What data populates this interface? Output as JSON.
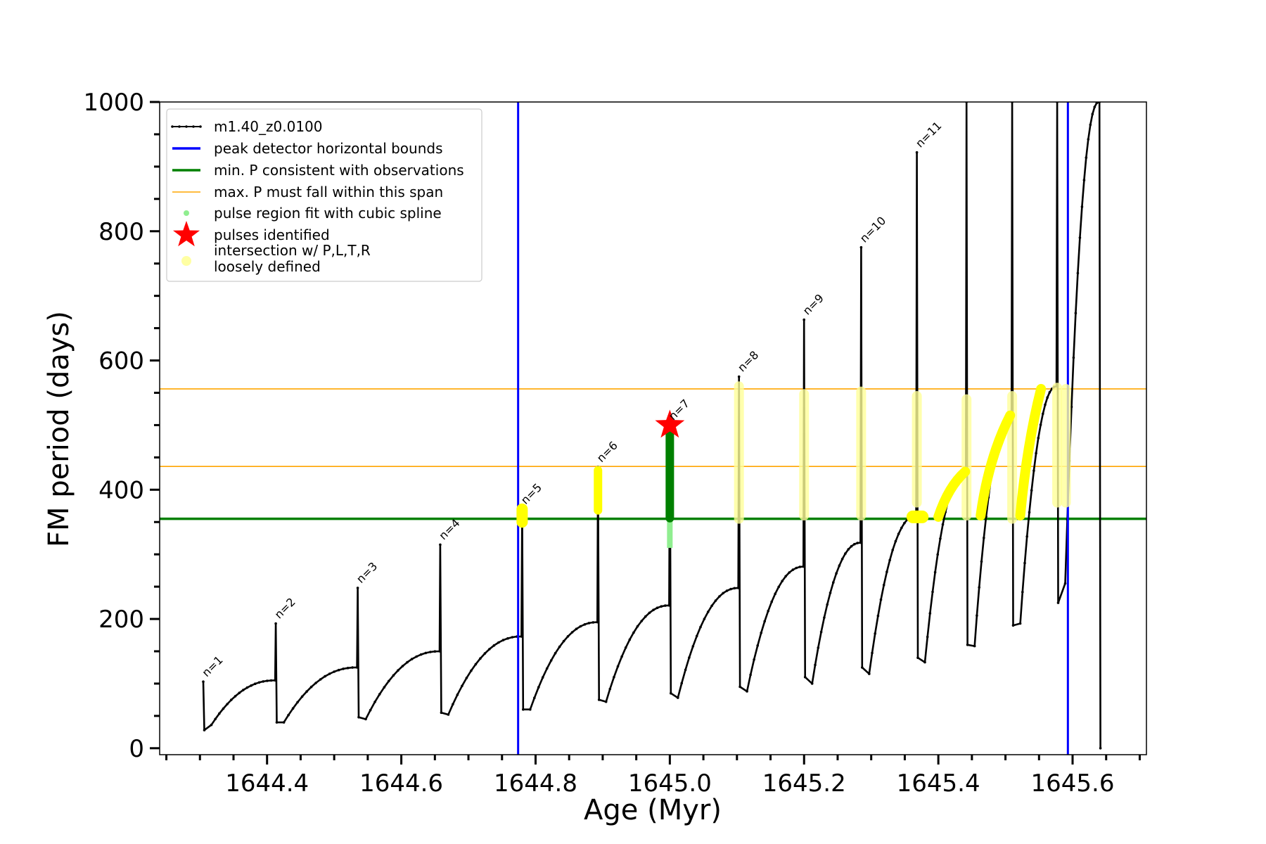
{
  "chart_data": {
    "type": "line",
    "title": "",
    "xlabel": "Age (Myr)",
    "ylabel": "FM period (days)",
    "xlim": [
      1644.24,
      1645.71
    ],
    "ylim": [
      -10,
      1000
    ],
    "xticks": [
      {
        "value": 1644.4,
        "label": "1644.4"
      },
      {
        "value": 1644.6,
        "label": "1644.6"
      },
      {
        "value": 1644.8,
        "label": "1644.8"
      },
      {
        "value": 1645.0,
        "label": "1645.0"
      },
      {
        "value": 1645.2,
        "label": "1645.2"
      },
      {
        "value": 1645.4,
        "label": "1645.4"
      },
      {
        "value": 1645.6,
        "label": "1645.6"
      }
    ],
    "yticks": [
      {
        "value": 0,
        "label": "0"
      },
      {
        "value": 200,
        "label": "200"
      },
      {
        "value": 400,
        "label": "400"
      },
      {
        "value": 600,
        "label": "600"
      },
      {
        "value": 800,
        "label": "800"
      },
      {
        "value": 1000,
        "label": "1000"
      }
    ],
    "legend": {
      "position": "top-left",
      "entries": [
        {
          "label": "m1.40_z0.0100",
          "style": "line-marker",
          "color": "#000000"
        },
        {
          "label": "peak detector horizontal bounds",
          "style": "line",
          "color": "#0000ff"
        },
        {
          "label": "min. P consistent with observations",
          "style": "line",
          "color": "#008000"
        },
        {
          "label": "max. P must fall within this span",
          "style": "thin-line",
          "color": "#ffa500"
        },
        {
          "label": "pulse region fit with cubic spline",
          "style": "dot",
          "color": "#90ee90"
        },
        {
          "label": "pulses identified",
          "style": "star",
          "color": "#ff0000"
        },
        {
          "label": [
            "intersection w/ P,L,T,R",
            "loosely defined"
          ],
          "style": "soft-dot",
          "color": "#ffff99"
        }
      ]
    },
    "vertical_bounds": [
      1644.774,
      1645.593
    ],
    "min_period_line": 355,
    "max_period_span": [
      436,
      556
    ],
    "pulses": [
      {
        "label": "n=1",
        "age": 1644.305,
        "peak": 103,
        "dip": 28,
        "trough": 36,
        "end": 105
      },
      {
        "label": "n=2",
        "age": 1644.413,
        "peak": 193,
        "dip": 40,
        "trough": 40,
        "end": 125
      },
      {
        "label": "n=3",
        "age": 1644.535,
        "peak": 248,
        "dip": 48,
        "trough": 45,
        "end": 150
      },
      {
        "label": "n=4",
        "age": 1644.658,
        "peak": 315,
        "dip": 55,
        "trough": 52,
        "end": 173
      },
      {
        "label": "n=5",
        "age": 1644.78,
        "peak": 370,
        "dip": 60,
        "trough": 60,
        "end": 195
      },
      {
        "label": "n=6",
        "age": 1644.893,
        "peak": 435,
        "dip": 75,
        "trough": 72,
        "end": 221
      },
      {
        "label": "n=7",
        "age": 1645.0,
        "peak": 500,
        "dip": 85,
        "trough": 78,
        "end": 248
      },
      {
        "label": "n=8",
        "age": 1645.103,
        "peak": 575,
        "dip": 95,
        "trough": 88,
        "end": 281
      },
      {
        "label": "n=9",
        "age": 1645.2,
        "peak": 663,
        "dip": 110,
        "trough": 100,
        "end": 318
      },
      {
        "label": "n=10",
        "age": 1645.285,
        "peak": 775,
        "dip": 125,
        "trough": 115,
        "end": 360
      },
      {
        "label": "n=11",
        "age": 1645.368,
        "peak": 922,
        "dip": 140,
        "trough": 133,
        "end": 430
      },
      {
        "label": "",
        "age": 1645.442,
        "peak": 1000,
        "dip": 160,
        "trough": 158,
        "end": 515
      },
      {
        "label": "",
        "age": 1645.51,
        "peak": 1000,
        "dip": 190,
        "trough": 193,
        "end": 560
      },
      {
        "label": "",
        "age": 1645.577,
        "peak": 1000,
        "dip": 225,
        "trough": 255,
        "end": 1000
      },
      {
        "label": "",
        "age": 1645.64,
        "peak": 1000,
        "dip": 0,
        "trough": 0,
        "end": 0
      }
    ],
    "pulse_identified": {
      "label": "n=7",
      "age": 1645.0,
      "period": 500
    }
  }
}
